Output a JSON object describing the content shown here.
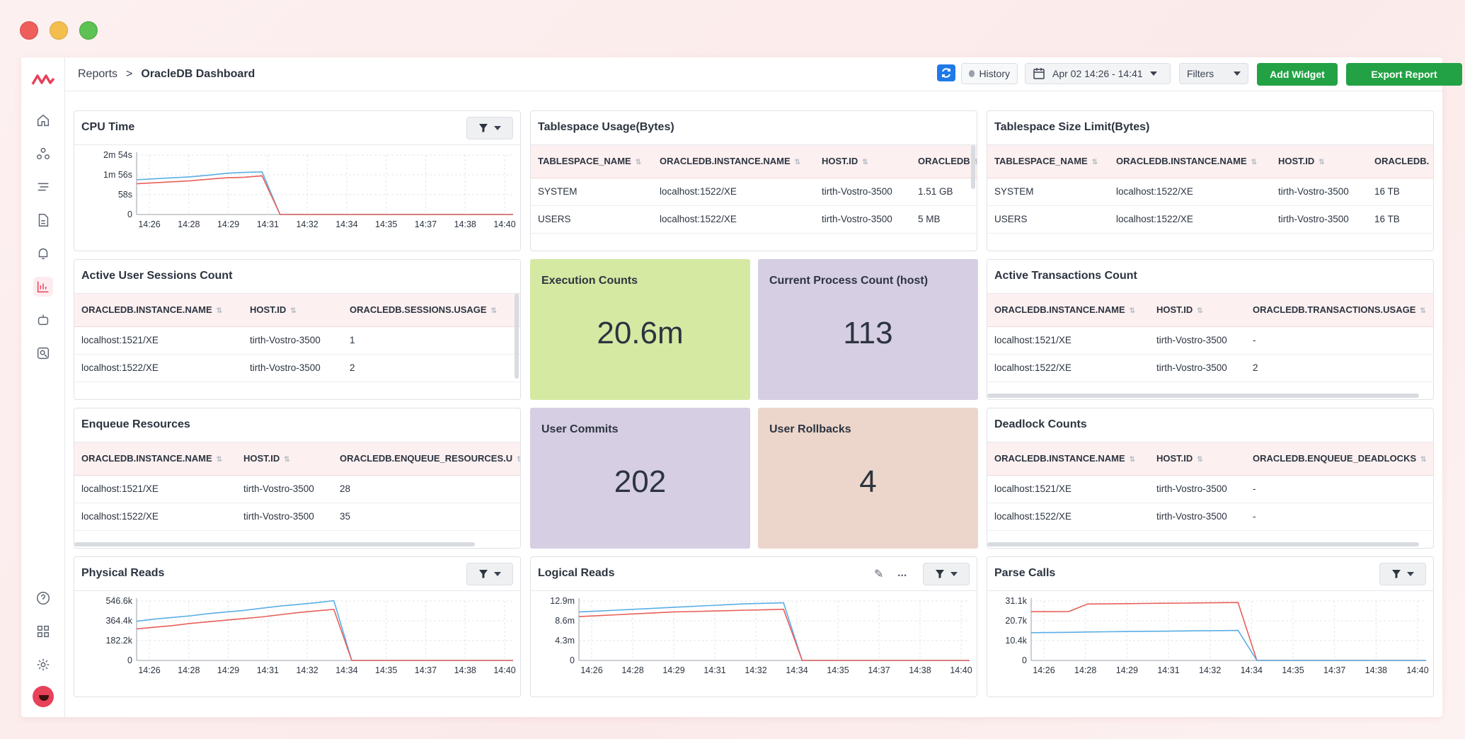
{
  "breadcrumb": {
    "root": "Reports",
    "separator": ">",
    "current": "OracleDB Dashboard"
  },
  "toolbar": {
    "history_label": "History",
    "date_range": "Apr 02 14:26 - 14:41",
    "filters_label": "Filters",
    "add_widget_label": "Add Widget",
    "export_label": "Export Report"
  },
  "sidebar": {
    "items": [
      "home-icon",
      "topology-icon",
      "list-icon",
      "document-icon",
      "bell-icon",
      "chart-icon",
      "robot-icon",
      "user-search-icon"
    ],
    "bottom": [
      "help-icon",
      "apps-icon",
      "gear-icon"
    ],
    "active": "chart-icon"
  },
  "colors": {
    "blue": "#5aaee6",
    "red": "#e8605a",
    "green": "#22a245",
    "kpi_green": "#d5e9a3",
    "kpi_purple": "#d6cee3",
    "kpi_peach": "#ecd6cb"
  },
  "x_ticks": [
    "14:26",
    "14:28",
    "14:29",
    "14:31",
    "14:32",
    "14:34",
    "14:35",
    "14:37",
    "14:38",
    "14:40"
  ],
  "widgets": {
    "cpu_time": {
      "title": "CPU Time"
    },
    "tablespace_usage": {
      "title": "Tablespace Usage(Bytes)",
      "columns": [
        "TABLESPACE_NAME",
        "ORACLEDB.INSTANCE.NAME",
        "HOST.ID",
        "ORACLEDB"
      ],
      "rows": [
        [
          "SYSTEM",
          "localhost:1522/XE",
          "tirth-Vostro-3500",
          "1.51 GB"
        ],
        [
          "USERS",
          "localhost:1522/XE",
          "tirth-Vostro-3500",
          "5 MB"
        ]
      ]
    },
    "tablespace_limit": {
      "title": "Tablespace Size Limit(Bytes)",
      "columns": [
        "TABLESPACE_NAME",
        "ORACLEDB.INSTANCE.NAME",
        "HOST.ID",
        "ORACLEDB."
      ],
      "rows": [
        [
          "SYSTEM",
          "localhost:1522/XE",
          "tirth-Vostro-3500",
          "16 TB"
        ],
        [
          "USERS",
          "localhost:1522/XE",
          "tirth-Vostro-3500",
          "16 TB"
        ]
      ]
    },
    "active_sessions": {
      "title": "Active User Sessions Count",
      "columns": [
        "ORACLEDB.INSTANCE.NAME",
        "HOST.ID",
        "ORACLEDB.SESSIONS.USAGE"
      ],
      "rows": [
        [
          "localhost:1521/XE",
          "tirth-Vostro-3500",
          "1"
        ],
        [
          "localhost:1522/XE",
          "tirth-Vostro-3500",
          "2"
        ]
      ]
    },
    "execution_counts": {
      "title": "Execution Counts",
      "value": "20.6m"
    },
    "process_count": {
      "title": "Current Process Count (host)",
      "value": "113"
    },
    "active_transactions": {
      "title": "Active Transactions Count",
      "columns": [
        "ORACLEDB.INSTANCE.NAME",
        "HOST.ID",
        "ORACLEDB.TRANSACTIONS.USAGE"
      ],
      "rows": [
        [
          "localhost:1521/XE",
          "tirth-Vostro-3500",
          "-"
        ],
        [
          "localhost:1522/XE",
          "tirth-Vostro-3500",
          "2"
        ]
      ]
    },
    "enqueue_resources": {
      "title": "Enqueue Resources",
      "columns": [
        "ORACLEDB.INSTANCE.NAME",
        "HOST.ID",
        "ORACLEDB.ENQUEUE_RESOURCES.U"
      ],
      "rows": [
        [
          "localhost:1521/XE",
          "tirth-Vostro-3500",
          "28"
        ],
        [
          "localhost:1522/XE",
          "tirth-Vostro-3500",
          "35"
        ]
      ]
    },
    "user_commits": {
      "title": "User Commits",
      "value": "202"
    },
    "user_rollbacks": {
      "title": "User Rollbacks",
      "value": "4"
    },
    "deadlock_counts": {
      "title": "Deadlock Counts",
      "columns": [
        "ORACLEDB.INSTANCE.NAME",
        "HOST.ID",
        "ORACLEDB.ENQUEUE_DEADLOCKS"
      ],
      "rows": [
        [
          "localhost:1521/XE",
          "tirth-Vostro-3500",
          "-"
        ],
        [
          "localhost:1522/XE",
          "tirth-Vostro-3500",
          "-"
        ]
      ]
    },
    "physical_reads": {
      "title": "Physical Reads"
    },
    "logical_reads": {
      "title": "Logical Reads",
      "more_label": "..."
    },
    "parse_calls": {
      "title": "Parse Calls"
    }
  },
  "chart_data": [
    {
      "type": "line",
      "id": "cpu",
      "y_ticks": [
        "0",
        "58s",
        "1m 56s",
        "2m 54s"
      ],
      "ymax": 3.0,
      "series": [
        {
          "color": "blue",
          "values": [
            1.75,
            1.8,
            1.85,
            1.9,
            1.98,
            2.08,
            2.12,
            2.15,
            0,
            0,
            0,
            0,
            0,
            0,
            0,
            0,
            0,
            0,
            0,
            0,
            0,
            0
          ]
        },
        {
          "color": "red",
          "values": [
            1.55,
            1.6,
            1.65,
            1.7,
            1.78,
            1.85,
            1.88,
            1.95,
            0,
            0,
            0,
            0,
            0,
            0,
            0,
            0,
            0,
            0,
            0,
            0,
            0,
            0
          ]
        }
      ]
    },
    {
      "type": "line",
      "id": "phys",
      "y_ticks": [
        "0",
        "182.2k",
        "364.4k",
        "546.6k"
      ],
      "ymax": 546.6,
      "series": [
        {
          "color": "blue",
          "values": [
            360,
            380,
            395,
            410,
            430,
            445,
            460,
            480,
            500,
            515,
            530,
            550,
            0,
            0,
            0,
            0,
            0,
            0,
            0,
            0,
            0,
            0
          ]
        },
        {
          "color": "red",
          "values": [
            290,
            305,
            320,
            340,
            355,
            370,
            385,
            400,
            420,
            440,
            455,
            470,
            0,
            0,
            0,
            0,
            0,
            0,
            0,
            0,
            0,
            0
          ]
        }
      ]
    },
    {
      "type": "line",
      "id": "logi",
      "y_ticks": [
        "0",
        "4.3m",
        "8.6m",
        "12.9m"
      ],
      "ymax": 12.9,
      "series": [
        {
          "color": "blue",
          "values": [
            10.5,
            10.7,
            10.9,
            11.1,
            11.3,
            11.5,
            11.7,
            11.9,
            12.1,
            12.3,
            12.4,
            12.5,
            0,
            0,
            0,
            0,
            0,
            0,
            0,
            0,
            0,
            0
          ]
        },
        {
          "color": "red",
          "values": [
            9.5,
            9.7,
            9.9,
            10.1,
            10.3,
            10.5,
            10.6,
            10.7,
            10.8,
            10.9,
            11.0,
            11.1,
            0,
            0,
            0,
            0,
            0,
            0,
            0,
            0,
            0,
            0
          ]
        }
      ]
    },
    {
      "type": "line",
      "id": "parse",
      "y_ticks": [
        "0",
        "10.4k",
        "20.7k",
        "31.1k"
      ],
      "ymax": 31.1,
      "series": [
        {
          "color": "red",
          "values": [
            25.5,
            25.5,
            25.6,
            29.5,
            29.6,
            29.7,
            29.8,
            29.9,
            30.0,
            30.1,
            30.2,
            30.3,
            0,
            0,
            0,
            0,
            0,
            0,
            0,
            0,
            0,
            0
          ]
        },
        {
          "color": "blue",
          "values": [
            14.5,
            14.6,
            14.7,
            14.9,
            15.0,
            15.1,
            15.2,
            15.3,
            15.4,
            15.5,
            15.6,
            15.7,
            0,
            0,
            0,
            0,
            0,
            0,
            0,
            0,
            0,
            0
          ]
        }
      ]
    }
  ]
}
